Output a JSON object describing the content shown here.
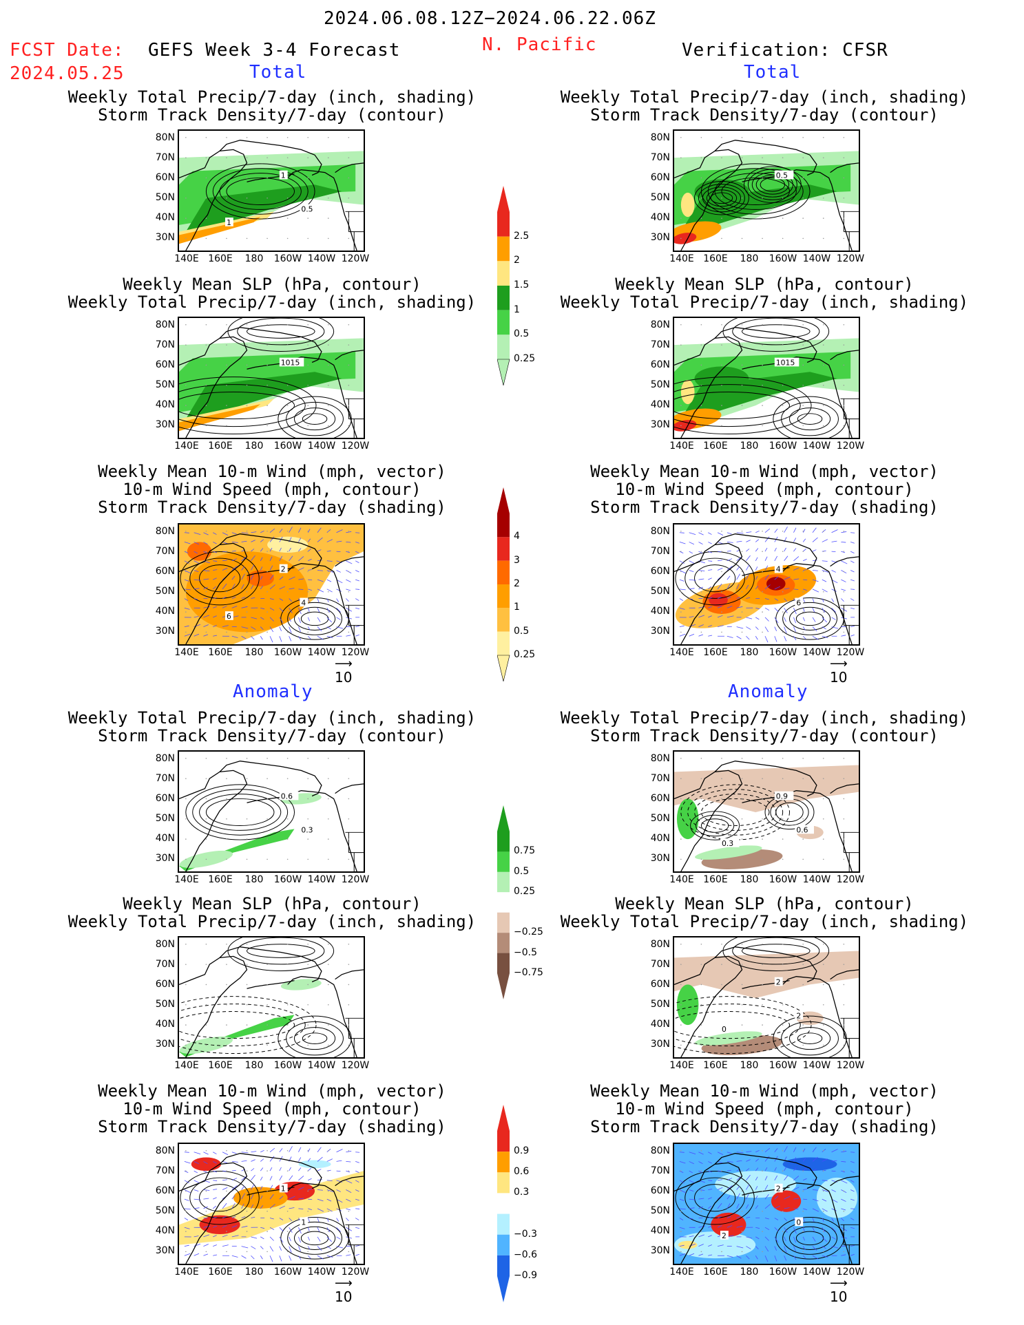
{
  "header": {
    "date_range": "2024.06.08.12Z−2024.06.22.06Z",
    "fcst_label": "FCST Date:",
    "fcst_date": "2024.05.25",
    "model": "GEFS Week 3-4 Forecast",
    "region": "N. Pacific",
    "verification": "Verification: CFSR"
  },
  "sections": {
    "total": "Total",
    "anomaly": "Anomaly"
  },
  "panel_titles": {
    "precip_track": [
      "Weekly Total Precip/7-day (inch, shading)",
      "Storm Track Density/7-day (contour)"
    ],
    "slp_precip": [
      "Weekly Mean SLP (hPa, contour)",
      "Weekly Total Precip/7-day (inch, shading)"
    ],
    "wind_track": [
      "Weekly Mean 10-m Wind (mph, vector)",
      "10-m Wind Speed (mph, contour)",
      "Storm Track Density/7-day (shading)"
    ]
  },
  "axes": {
    "lat_ticks": [
      "80N",
      "70N",
      "60N",
      "50N",
      "40N",
      "30N"
    ],
    "lon_ticks": [
      "140E",
      "160E",
      "180",
      "160W",
      "140W",
      "120W"
    ]
  },
  "vector_ref": "10",
  "colorbars": {
    "precip_total": {
      "labels": [
        "2.5",
        "2",
        "1.5",
        "1",
        "0.5",
        "0.25"
      ],
      "colors": [
        "#e8281e",
        "#ff9e00",
        "#ffe680",
        "#1e9e1e",
        "#46d246",
        "#b4f0b4"
      ]
    },
    "track_total": {
      "labels": [
        "4",
        "3",
        "2",
        "1",
        "0.5",
        "0.25"
      ],
      "colors": [
        "#a50000",
        "#e8281e",
        "#ff6a00",
        "#ff9e00",
        "#ffc040",
        "#fff0a0"
      ]
    },
    "precip_anom": {
      "labels": [
        "0.75",
        "0.5",
        "0.25",
        "−0.25",
        "−0.5",
        "−0.75"
      ],
      "colors": [
        "#1e9e1e",
        "#46d246",
        "#b4f0b4",
        "#ffffff",
        "#e6c8b4",
        "#b48c78",
        "#785040"
      ]
    },
    "track_anom": {
      "labels": [
        "0.9",
        "0.6",
        "0.3",
        "−0.3",
        "−0.6",
        "−0.9"
      ],
      "colors": [
        "#e8281e",
        "#ff9e00",
        "#ffe680",
        "#ffffff",
        "#b4f0ff",
        "#50b4ff",
        "#1e64e6"
      ]
    }
  },
  "contour_labels": {
    "fcst_precip_total": [
      "1",
      "0.5",
      "1"
    ],
    "obs_precip_total": [
      "0.5"
    ],
    "fcst_slp_total": [
      "1015"
    ],
    "obs_slp_total": [
      "1015"
    ],
    "fcst_wind_total": [
      "2",
      "4",
      "6"
    ],
    "obs_wind_total": [
      "4",
      "6"
    ],
    "fcst_precip_anom": [
      "0.6",
      "0.3"
    ],
    "obs_precip_anom": [
      "0.9",
      "0.6",
      "0.3"
    ],
    "obs_slp_anom": [
      "2",
      "2",
      "0"
    ],
    "fcst_wind_anom": [
      "1",
      "1"
    ],
    "obs_wind_anom": [
      "2",
      "0",
      "2"
    ]
  }
}
